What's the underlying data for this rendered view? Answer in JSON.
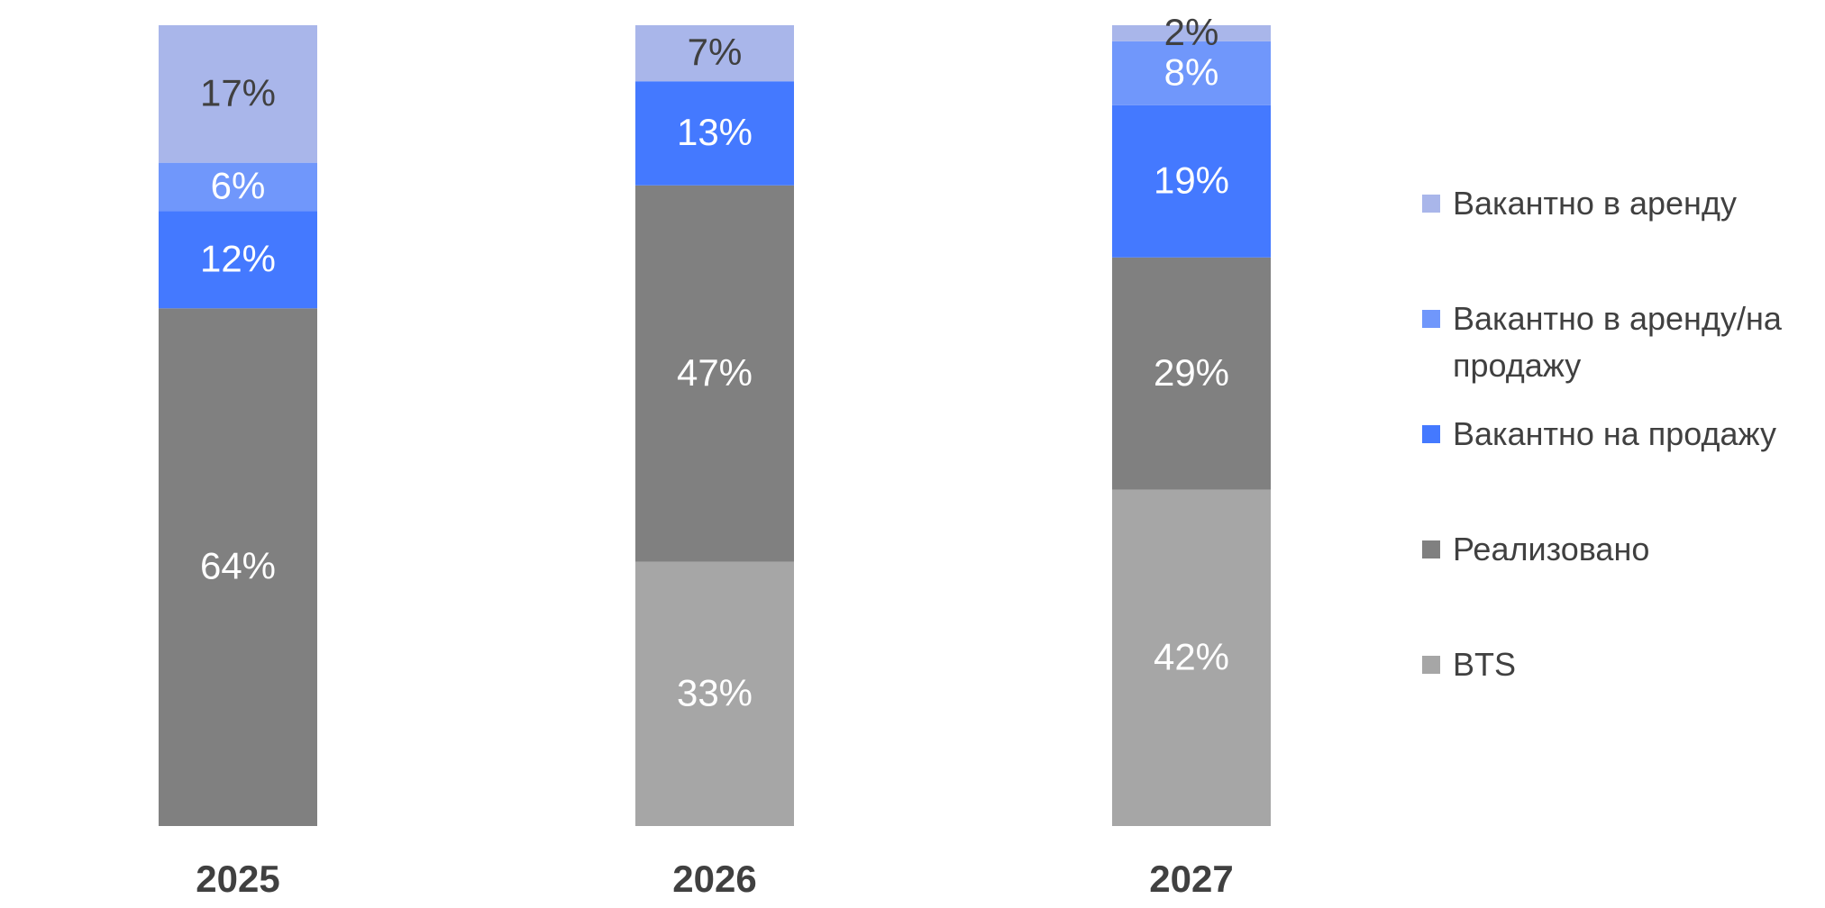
{
  "colors": {
    "vacant_rent": "#a9b6ea",
    "vacant_rent_sale": "#7097fb",
    "vacant_sale": "#4479ff",
    "sold": "#808080",
    "bts": "#a6a6a6",
    "text_dark": "#404040",
    "text_light": "#ffffff"
  },
  "chart_data": {
    "type": "bar",
    "stacked": true,
    "categories": [
      "2025",
      "2026",
      "2027"
    ],
    "ylim": [
      0,
      100
    ],
    "unit": "%",
    "series": [
      {
        "name": "BTS",
        "color": "#a6a6a6",
        "label_color": "#ffffff",
        "values": [
          0,
          33,
          42
        ]
      },
      {
        "name": "Реализовано",
        "color": "#808080",
        "label_color": "#ffffff",
        "values": [
          64,
          47,
          29
        ]
      },
      {
        "name": "Вакантно на продажу",
        "color": "#4479ff",
        "label_color": "#ffffff",
        "values": [
          12,
          13,
          19
        ]
      },
      {
        "name": "Вакантно в аренду/на продажу",
        "color": "#7097fb",
        "label_color": "#ffffff",
        "values": [
          6,
          0,
          8
        ]
      },
      {
        "name": "Вакантно в аренду",
        "color": "#a9b6ea",
        "label_color": "#404040",
        "values": [
          17,
          7,
          2
        ]
      }
    ],
    "legend_position": "right",
    "grid": false
  },
  "legend": [
    {
      "label": "Вакантно в аренду",
      "color": "#a9b6ea"
    },
    {
      "label": "Вакантно в аренду/на продажу",
      "color": "#7097fb"
    },
    {
      "label": "Вакантно на продажу",
      "color": "#4479ff"
    },
    {
      "label": "Реализовано",
      "color": "#808080"
    },
    {
      "label": "BTS",
      "color": "#a6a6a6"
    }
  ]
}
